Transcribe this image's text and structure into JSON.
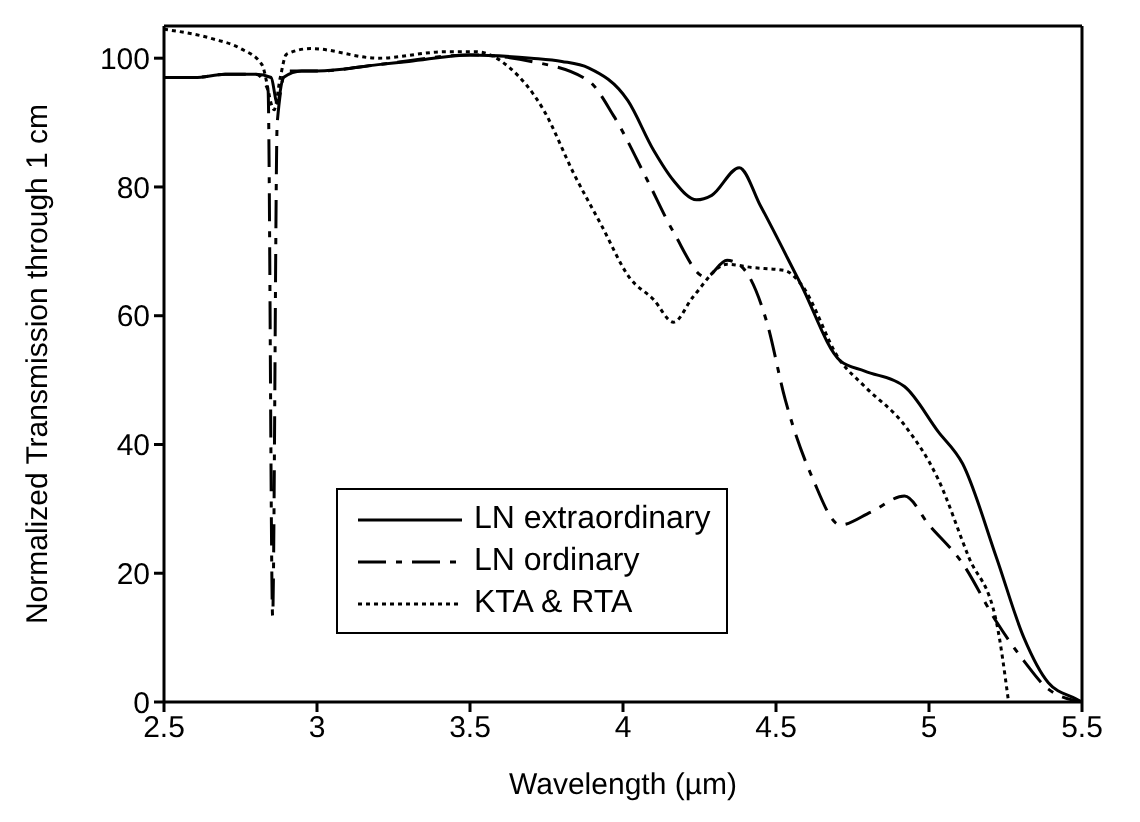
{
  "chart_data": {
    "type": "line",
    "xlabel": "Wavelength (µm)",
    "ylabel": "Normalized Transmission through 1 cm",
    "xlim": [
      2.5,
      5.5
    ],
    "xticks": [
      2.5,
      3,
      3.5,
      4,
      4.5,
      5,
      5.5
    ],
    "ylim": [
      0,
      105
    ],
    "yticks": [
      0,
      20,
      40,
      60,
      80,
      100
    ],
    "grid": false,
    "legend": "bottom left",
    "marker": "none",
    "series": [
      {
        "name": "LN extraordinary",
        "color": "#000000",
        "line_style": "solid",
        "x": [
          2.5,
          2.6,
          2.7,
          2.8,
          2.85,
          2.87,
          2.89,
          2.95,
          3.0,
          3.2,
          3.3,
          3.5,
          3.7,
          3.8,
          3.887,
          4.016,
          4.1,
          4.165,
          4.24,
          4.29,
          4.38,
          4.45,
          4.58,
          4.71,
          4.79,
          4.92,
          5.03,
          5.11,
          5.22,
          5.31,
          5.39,
          5.48,
          5.5
        ],
        "values": [
          97,
          97,
          97.5,
          97.5,
          97,
          93,
          97,
          98,
          98,
          99,
          99.5,
          100.5,
          100,
          99.5,
          98.5,
          93.4,
          85.7,
          81,
          78,
          78.7,
          83,
          77,
          65,
          53,
          51.4,
          49,
          42,
          37,
          22.5,
          10,
          3,
          0.5,
          0
        ]
      },
      {
        "name": "LN ordinary",
        "color": "#000000",
        "line_style": "dashed",
        "x": [
          2.5,
          2.6,
          2.7,
          2.8,
          2.84,
          2.855,
          2.87,
          2.9,
          3.0,
          3.2,
          3.5,
          3.7,
          3.887,
          3.97,
          4.08,
          4.165,
          4.27,
          4.34,
          4.39,
          4.47,
          4.53,
          4.62,
          4.71,
          4.81,
          4.92,
          5.0,
          5.11,
          5.22,
          5.31,
          5.39,
          5.5
        ],
        "values": [
          97,
          97,
          97.5,
          97.5,
          95,
          13.4,
          90,
          98,
          98,
          99,
          100.5,
          99.5,
          96.5,
          91,
          81,
          73,
          66,
          68.6,
          67.5,
          59,
          47,
          34.7,
          27.5,
          29.5,
          32,
          27.5,
          21.5,
          12.5,
          6.4,
          2,
          0
        ]
      },
      {
        "name": "KTA & RTA",
        "color": "#000000",
        "line_style": "dotted",
        "x": [
          2.5,
          2.66,
          2.75,
          2.82,
          2.86,
          2.88,
          2.9,
          2.98,
          3.2,
          3.42,
          3.52,
          3.63,
          3.74,
          3.84,
          3.93,
          4.02,
          4.1,
          4.165,
          4.23,
          4.34,
          4.42,
          4.53,
          4.58,
          4.71,
          4.79,
          4.92,
          5.03,
          5.13,
          5.22,
          5.26
        ],
        "values": [
          104.5,
          103,
          101.5,
          99,
          92,
          97,
          100.6,
          101.5,
          100,
          101,
          101,
          98.5,
          92,
          82,
          74,
          66,
          62.5,
          59,
          63,
          68,
          67.5,
          67,
          65,
          53,
          49,
          43,
          34.6,
          22.5,
          12.5,
          0
        ]
      }
    ]
  }
}
